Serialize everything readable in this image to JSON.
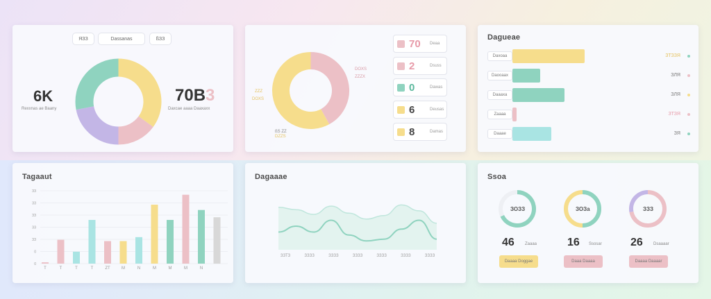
{
  "colors": {
    "yellow": "#f6dd8c",
    "mint": "#8fd3bf",
    "pink": "#ecc0c6",
    "lavender": "#c3b6e6",
    "cyan": "#a9e4e3",
    "gray": "#d8d8d8"
  },
  "card1": {
    "pills": [
      "ЯЗЗ",
      "Dassanas",
      "ßЗЗ"
    ],
    "left_value": "6K",
    "left_sub": "Rexxnas ae Baany",
    "right_value": "70B",
    "right_suffix": "3",
    "right_sub": "Daxcae aaaa Daaxaxx",
    "donut": [
      {
        "color": "yellow",
        "value": 35
      },
      {
        "color": "pink",
        "value": 15
      },
      {
        "color": "lavender",
        "value": 22
      },
      {
        "color": "mint",
        "value": 28
      }
    ]
  },
  "card2": {
    "labels": {
      "top_right": "DOXS",
      "top_right_sub": "ZZZX",
      "left": "ZZZ",
      "left_sub": "DOXS",
      "bottom": "ßS ZZ",
      "bottom_sub": "DZZS"
    },
    "donut": [
      {
        "color": "pink",
        "value": 42
      },
      {
        "color": "yellow",
        "value": 58
      }
    ],
    "legend": [
      {
        "color": "pink",
        "value": "70",
        "sub": "Deaa"
      },
      {
        "color": "pink",
        "value": "2",
        "sub": "Dsuss"
      },
      {
        "color": "mint",
        "value": "0",
        "sub": "Dawas"
      },
      {
        "color": "yellow",
        "value": "6",
        "sub": "Deusas"
      },
      {
        "color": "yellow",
        "value": "8",
        "sub": "Damas"
      }
    ]
  },
  "card3": {
    "title": "Dagueae",
    "rows": [
      {
        "label": "Daxoaa",
        "value": 0.62,
        "color": "yellow",
        "readout": "ЗТЗЗЯ",
        "dot": "mint"
      },
      {
        "label": "Daooaax",
        "value": 0.24,
        "color": "mint",
        "readout": "ЗЛЯ",
        "dot": "pink"
      },
      {
        "label": "Daaaxa",
        "value": 0.45,
        "color": "mint",
        "readout": "ЗЛЯ",
        "dot": "yellow"
      },
      {
        "label": "Zaaaa",
        "value": 0.02,
        "color": "pink",
        "readout": "ЗТЗЯ",
        "dot": "pink"
      },
      {
        "label": "Daaae",
        "value": 0.32,
        "color": "cyan",
        "readout": "ЗЯ",
        "dot": "mint"
      }
    ]
  },
  "card4": {
    "title": "Tagaaut",
    "y_ticks": [
      "ЗЗ",
      "ЗЗ",
      "ЗЗ",
      "ЗЗ",
      "ЗЗ",
      "0",
      "0"
    ],
    "x_ticks": [
      "T",
      "T",
      "T",
      "T",
      "ZT",
      "M",
      "N",
      "M",
      "M",
      "M",
      "N"
    ],
    "chart_data": {
      "type": "bar",
      "bars": [
        {
          "value": 2,
          "color": "pink"
        },
        {
          "value": 36,
          "color": "pink"
        },
        {
          "value": 18,
          "color": "cyan"
        },
        {
          "value": 66,
          "color": "cyan"
        },
        {
          "value": 34,
          "color": "pink"
        },
        {
          "value": 34,
          "color": "yellow"
        },
        {
          "value": 40,
          "color": "cyan"
        },
        {
          "value": 89,
          "color": "yellow"
        },
        {
          "value": 66,
          "color": "mint"
        },
        {
          "value": 104,
          "color": "pink"
        },
        {
          "value": 81,
          "color": "mint"
        },
        {
          "value": 70,
          "color": "gray"
        }
      ],
      "ylim": [
        0,
        110
      ]
    }
  },
  "card5": {
    "title": "Dagaaae",
    "x_ticks": [
      "ЗЗТЗ",
      "ЗЗЗЗ",
      "ЗЗЗЗ",
      "ЗЗЗЗ",
      "ЗЗЗЗ",
      "ЗЗЗЗ",
      "ЗЗЗЗ"
    ],
    "chart_data": {
      "type": "area",
      "x": [
        0,
        1,
        2,
        3,
        4,
        5,
        6,
        7,
        8,
        9
      ],
      "series": [
        {
          "values": [
            72,
            68,
            60,
            74,
            62,
            52,
            58,
            76,
            66,
            45
          ]
        },
        {
          "values": [
            30,
            40,
            30,
            50,
            25,
            15,
            18,
            35,
            50,
            18
          ]
        }
      ],
      "ylim": [
        0,
        100
      ]
    }
  },
  "card6": {
    "title": "Ssoa",
    "rings": [
      {
        "center": "ЗОЗЗ",
        "percent": 0.68,
        "color": "mint",
        "number": "46",
        "label": "Zaaaa",
        "button": "Daaaa Doggae",
        "btn_color": "yellow"
      },
      {
        "center": "ЗОЗа",
        "percent": 0.5,
        "color": "mint",
        "color2": "yellow",
        "number": "16",
        "label": "Ssosar",
        "button": "Daaa Daaaa",
        "btn_color": "pink"
      },
      {
        "center": "ЗЗЗ",
        "percent": 0.72,
        "color": "pink",
        "color2": "lavender",
        "number": "26",
        "label": "Dsaaaar",
        "button": "Daaaa Daaaar",
        "btn_color": "pink"
      }
    ]
  }
}
